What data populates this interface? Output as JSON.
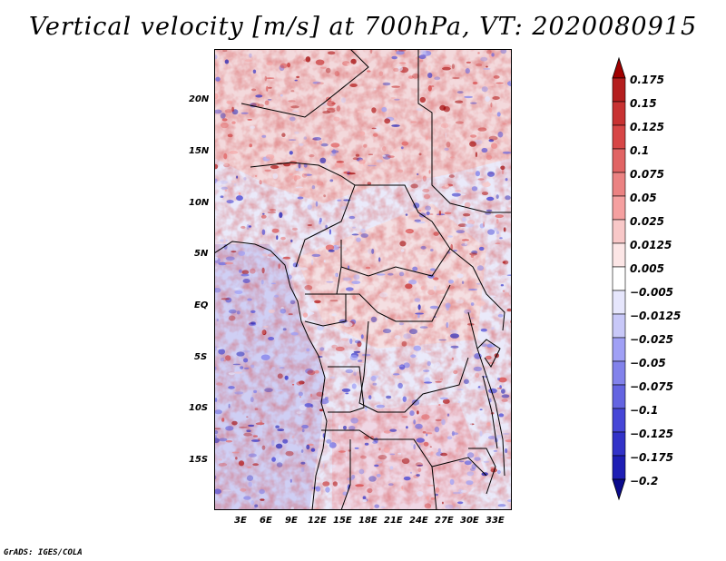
{
  "title": "Vertical velocity [m/s] at 700hPa, VT: 2020080915",
  "credit": "GrADS: IGES/COLA",
  "map": {
    "lat_labels": [
      "20N",
      "15N",
      "10N",
      "5N",
      "EQ",
      "5S",
      "10S",
      "15S"
    ],
    "lon_labels": [
      "3E",
      "6E",
      "9E",
      "12E",
      "15E",
      "18E",
      "21E",
      "24E",
      "27E",
      "30E",
      "33E"
    ],
    "lat_range": [
      -20,
      25
    ],
    "lon_range": [
      0,
      35
    ]
  },
  "colorbar": {
    "labels": [
      "0.175",
      "0.15",
      "0.125",
      "0.1",
      "0.075",
      "0.05",
      "0.025",
      "0.0125",
      "0.005",
      "−0.005",
      "−0.0125",
      "−0.025",
      "−0.05",
      "−0.075",
      "−0.1",
      "−0.125",
      "−0.175",
      "−0.2"
    ],
    "colors": [
      "#a00000",
      "#b41e1e",
      "#c83232",
      "#d74646",
      "#e16464",
      "#eb8282",
      "#f5a0a0",
      "#f8c8c8",
      "#fce6e6",
      "#ffffff",
      "#e6e6fc",
      "#c8c8f8",
      "#a0a0f5",
      "#8282eb",
      "#6464e1",
      "#4646d7",
      "#3232c8",
      "#1e1eb4",
      "#0a0a8c"
    ]
  }
}
